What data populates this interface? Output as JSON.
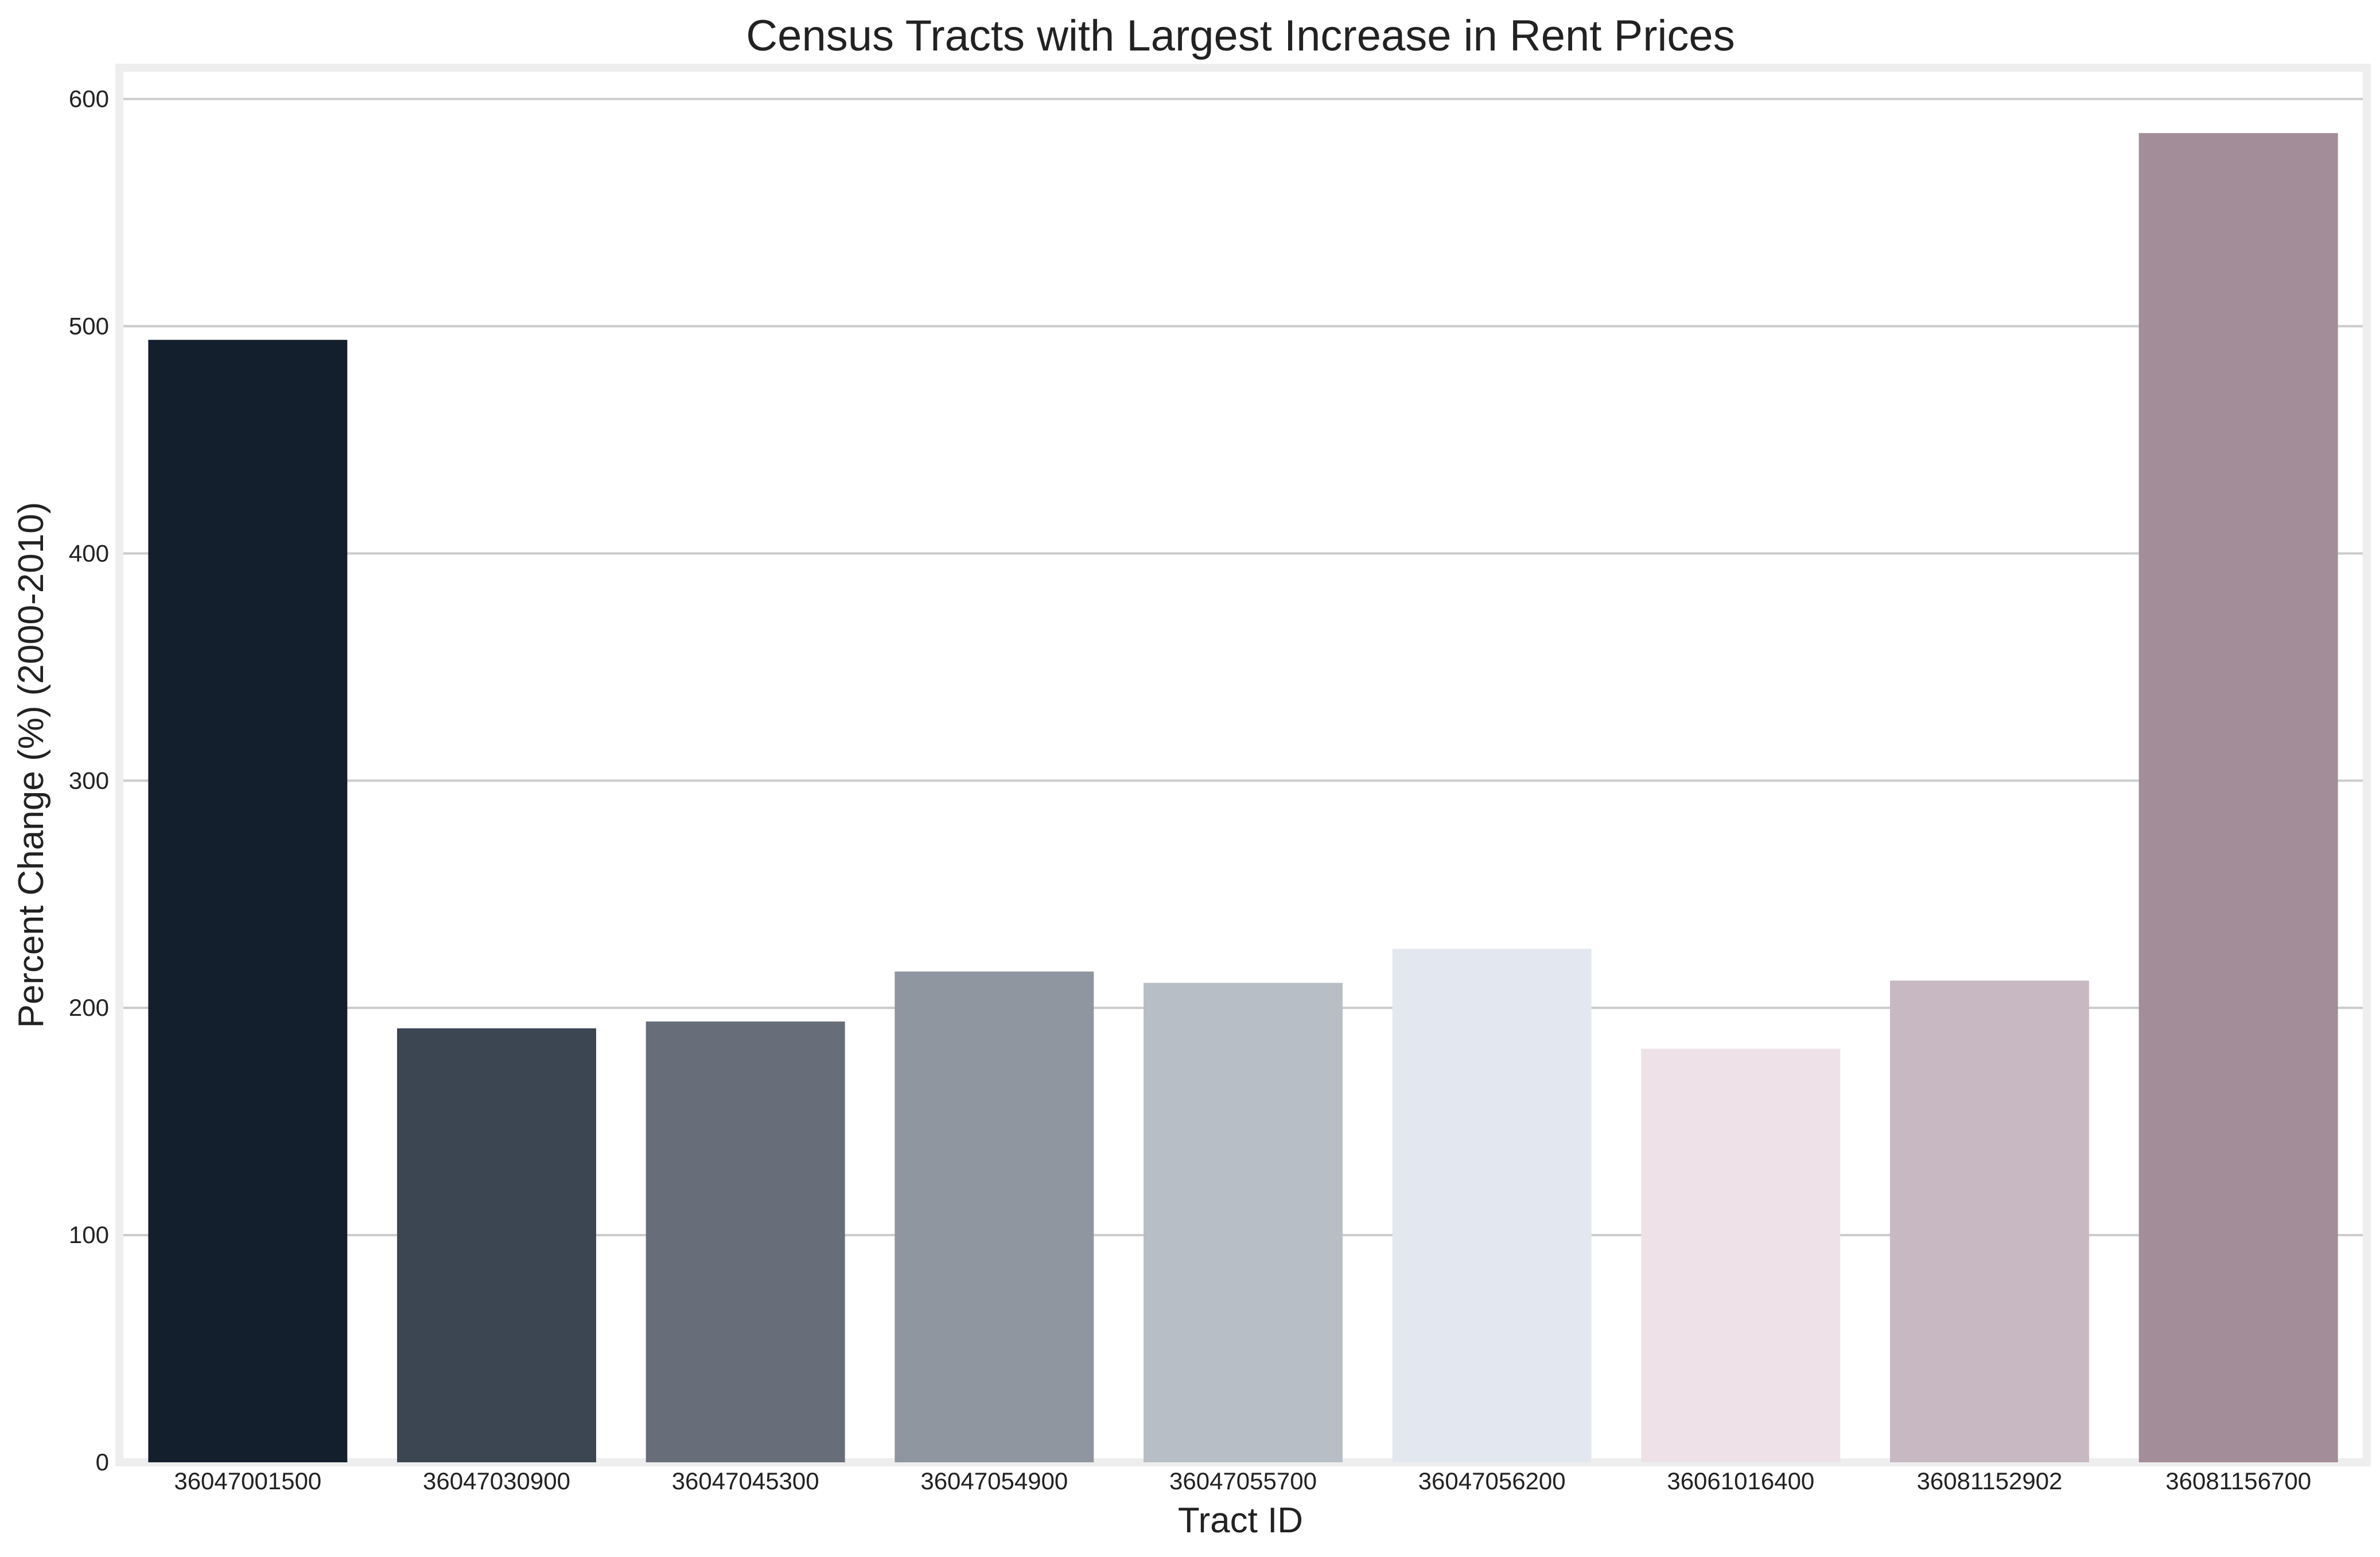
{
  "chart_data": {
    "type": "bar",
    "title": "Census Tracts with Largest Increase in Rent Prices",
    "xlabel": "Tract ID",
    "ylabel": "Percent Change (%) (2000-2010)",
    "categories": [
      "36047001500",
      "36047030900",
      "36047045300",
      "36047054900",
      "36047055700",
      "36047056200",
      "36061016400",
      "36081152902",
      "36081156700"
    ],
    "values": [
      494,
      191,
      194,
      216,
      211,
      226,
      182,
      212,
      585
    ],
    "colors": [
      "#141f2d",
      "#3c4653",
      "#676e7a",
      "#8f96a0",
      "#b8bec6",
      "#e3e7ef",
      "#eee2e8",
      "#c8b8c2",
      "#a38d98"
    ],
    "ylim": [
      0,
      612
    ],
    "yticks": [
      0,
      100,
      200,
      300,
      400,
      500,
      600
    ],
    "grid": "horizontal",
    "legend": "none"
  }
}
